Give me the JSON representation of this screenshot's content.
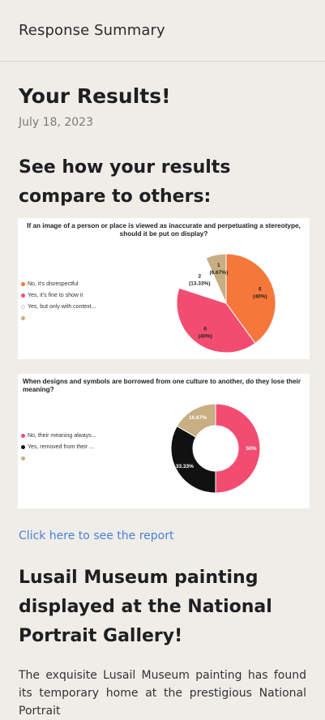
{
  "header": {
    "title": "Response Summary"
  },
  "main": {
    "heading": "Your Results!",
    "date": "July 18, 2023",
    "compare_heading": "See how your results compare to others:",
    "link_text": "Click here to see the report",
    "article_heading": "Lusail Museum painting displayed at the National Portrait Gallery!",
    "article_text": "The exquisite Lusail Museum painting has found its temporary home at the prestigious National Portrait"
  },
  "chart_data": [
    {
      "type": "pie",
      "title": "If an image of a person or place is viewed as inaccurate and perpetuating a stereotype, should it be put on display?",
      "legend": [
        {
          "label": "No, it's disrespectful",
          "color": "#f5773a"
        },
        {
          "label": "Yes, it's fine to show it",
          "color": "#f24d71"
        },
        {
          "label": "Yes, but only with context...",
          "color": "#ffffff"
        },
        {
          "label": "",
          "color": "#c8ae82"
        }
      ],
      "slices": [
        {
          "value": 6,
          "label": "6",
          "pct": "(40%)",
          "color": "#f5773a"
        },
        {
          "value": 6,
          "label": "6",
          "pct": "(40%)",
          "color": "#f24d71"
        },
        {
          "value": 2,
          "label": "2",
          "pct": "(13.33%)",
          "color": "#ffffff"
        },
        {
          "value": 1,
          "label": "1",
          "pct": "(6.67%)",
          "color": "#c8ae82"
        }
      ]
    },
    {
      "type": "pie",
      "title": "When designs and symbols are borrowed from one culture to another, do they lose their meaning?",
      "legend": [
        {
          "label": "No, their meaning always...",
          "color": "#f24d71"
        },
        {
          "label": "Yes, removed from their ...",
          "color": "#111111"
        },
        {
          "label": "",
          "color": "#c8ae82"
        }
      ],
      "slices": [
        {
          "value": 50,
          "pct": "50%",
          "color": "#f24d71"
        },
        {
          "value": 33.33,
          "pct": "33.33%",
          "color": "#111111"
        },
        {
          "value": 16.67,
          "pct": "16.67%",
          "color": "#c8ae82"
        }
      ]
    }
  ]
}
